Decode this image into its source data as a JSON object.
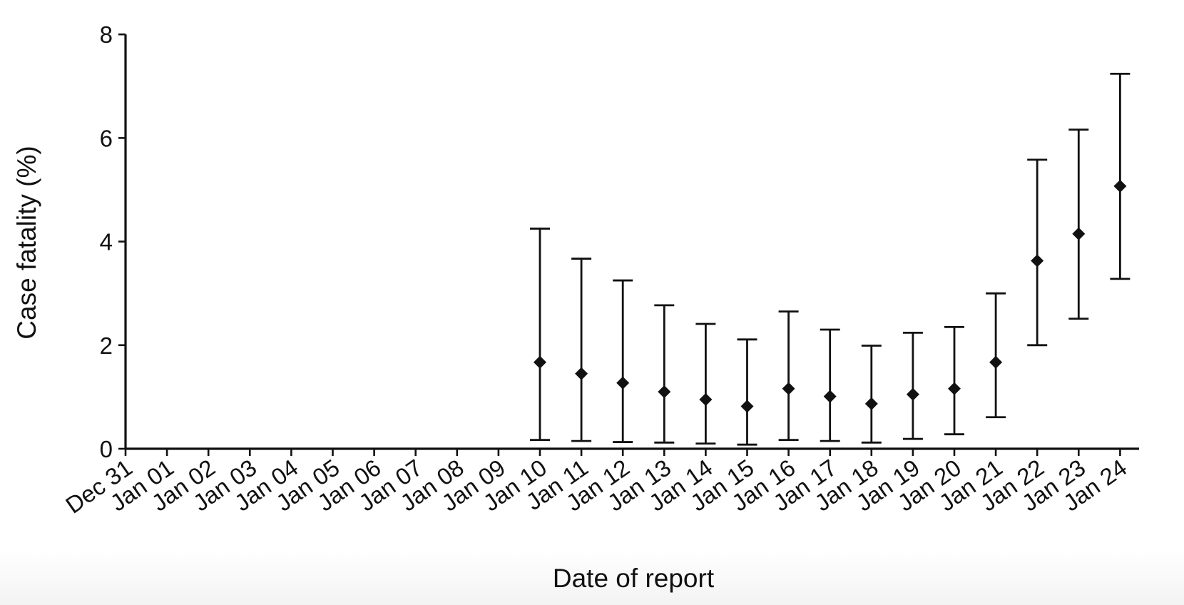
{
  "chart_data": {
    "type": "scatter",
    "title": "",
    "xlabel": "Date of report",
    "ylabel": "Case fatality (%)",
    "ylim": [
      0,
      8
    ],
    "yticks": [
      0,
      2,
      4,
      6,
      8
    ],
    "grid": false,
    "categories": [
      "Dec 31",
      "Jan 01",
      "Jan 02",
      "Jan 03",
      "Jan 04",
      "Jan 05",
      "Jan 06",
      "Jan 07",
      "Jan 08",
      "Jan 09",
      "Jan 10",
      "Jan 11",
      "Jan 12",
      "Jan 13",
      "Jan 14",
      "Jan 15",
      "Jan 16",
      "Jan 17",
      "Jan 18",
      "Jan 19",
      "Jan 20",
      "Jan 21",
      "Jan 22",
      "Jan 23",
      "Jan 24"
    ],
    "points": [
      {
        "x": "Jan 10",
        "y": 1.67,
        "lower": 0.17,
        "upper": 4.25
      },
      {
        "x": "Jan 11",
        "y": 1.45,
        "lower": 0.15,
        "upper": 3.67
      },
      {
        "x": "Jan 12",
        "y": 1.27,
        "lower": 0.13,
        "upper": 3.25
      },
      {
        "x": "Jan 13",
        "y": 1.1,
        "lower": 0.12,
        "upper": 2.77
      },
      {
        "x": "Jan 14",
        "y": 0.95,
        "lower": 0.1,
        "upper": 2.41
      },
      {
        "x": "Jan 15",
        "y": 0.82,
        "lower": 0.08,
        "upper": 2.11
      },
      {
        "x": "Jan 16",
        "y": 1.16,
        "lower": 0.17,
        "upper": 2.65
      },
      {
        "x": "Jan 17",
        "y": 1.01,
        "lower": 0.15,
        "upper": 2.3
      },
      {
        "x": "Jan 18",
        "y": 0.87,
        "lower": 0.12,
        "upper": 1.99
      },
      {
        "x": "Jan 19",
        "y": 1.05,
        "lower": 0.19,
        "upper": 2.24
      },
      {
        "x": "Jan 20",
        "y": 1.16,
        "lower": 0.28,
        "upper": 2.35
      },
      {
        "x": "Jan 21",
        "y": 1.67,
        "lower": 0.61,
        "upper": 3.0
      },
      {
        "x": "Jan 22",
        "y": 3.63,
        "lower": 2.0,
        "upper": 5.58
      },
      {
        "x": "Jan 23",
        "y": 4.15,
        "lower": 2.51,
        "upper": 6.16
      },
      {
        "x": "Jan 24",
        "y": 5.07,
        "lower": 3.28,
        "upper": 7.24
      }
    ]
  }
}
